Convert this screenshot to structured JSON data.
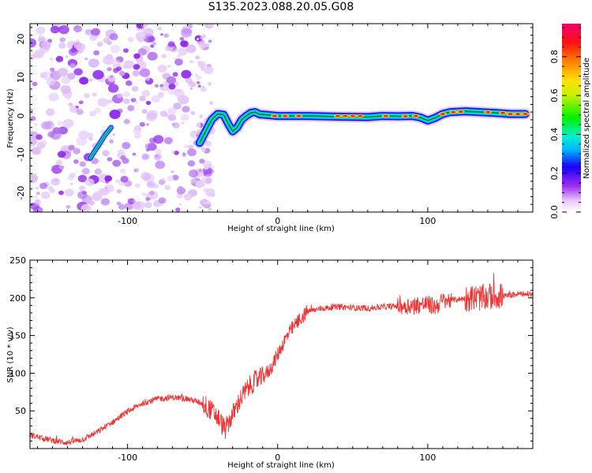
{
  "title": "S135.2023.088.20.05.G08",
  "chart_data": [
    {
      "type": "heatmap",
      "xlabel": "Height of straight line (km)",
      "ylabel": "Frequency (Hz)",
      "xlim": [
        -165,
        170
      ],
      "ylim": [
        -25,
        24
      ],
      "xticks": [
        -100,
        0,
        100
      ],
      "yticks": [
        -20,
        -10,
        0,
        10,
        20
      ],
      "colorbar": {
        "label": "Normalized spectral amplitude",
        "range": [
          0.0,
          0.97
        ],
        "ticks": [
          0.0,
          0.2,
          0.4,
          0.6,
          0.8
        ],
        "tick_labels": [
          "0.0",
          "0.2",
          "0.4",
          "0.6",
          "0.8"
        ]
      },
      "ridge": {
        "x": [
          -125,
          -120,
          -115,
          -111,
          -52,
          -48,
          -44,
          -40,
          -36,
          -33,
          -30,
          -27,
          -24,
          -21,
          -18,
          -15,
          -12,
          -8,
          0,
          10,
          20,
          40,
          60,
          70,
          80,
          90,
          95,
          100,
          105,
          110,
          115,
          125,
          135,
          145,
          155,
          165
        ],
        "y": [
          -11,
          -8,
          -5,
          -3,
          -7,
          -4,
          -1,
          0.5,
          0.3,
          -2,
          -4,
          -3,
          -1,
          0,
          0.8,
          1,
          0.4,
          0.3,
          0,
          0,
          0,
          -0.2,
          -0.3,
          0,
          -0.1,
          0,
          -0.4,
          -1.2,
          -0.5,
          0.5,
          1,
          1.2,
          1,
          0.8,
          0.5,
          0.5
        ]
      },
      "noise_region_x": [
        -165,
        -48
      ]
    },
    {
      "type": "line",
      "xlabel": "Height of straight line (km)",
      "ylabel": "SNR (10 * v/v)",
      "xlim": [
        -165,
        170
      ],
      "ylim": [
        0,
        250
      ],
      "xticks": [
        -100,
        0,
        100
      ],
      "yticks": [
        50,
        100,
        150,
        200,
        250
      ],
      "series": [
        {
          "color": "#f03333",
          "x": [
            -165,
            -155,
            -145,
            -140,
            -130,
            -120,
            -110,
            -100,
            -90,
            -80,
            -70,
            -60,
            -50,
            -45,
            -40,
            -35,
            -30,
            -25,
            -20,
            -15,
            -10,
            -5,
            0,
            5,
            10,
            15,
            20,
            30,
            40,
            50,
            60,
            70,
            80,
            90,
            100,
            105,
            110,
            120,
            130,
            138,
            145,
            150,
            160,
            170
          ],
          "y": [
            18,
            13,
            9,
            8,
            12,
            22,
            35,
            49,
            60,
            66,
            68,
            66,
            60,
            52,
            42,
            25,
            45,
            65,
            80,
            90,
            95,
            105,
            125,
            145,
            160,
            172,
            182,
            186,
            188,
            187,
            186,
            188,
            189,
            190,
            192,
            188,
            196,
            198,
            200,
            200,
            203,
            202,
            205,
            205
          ]
        }
      ]
    }
  ]
}
